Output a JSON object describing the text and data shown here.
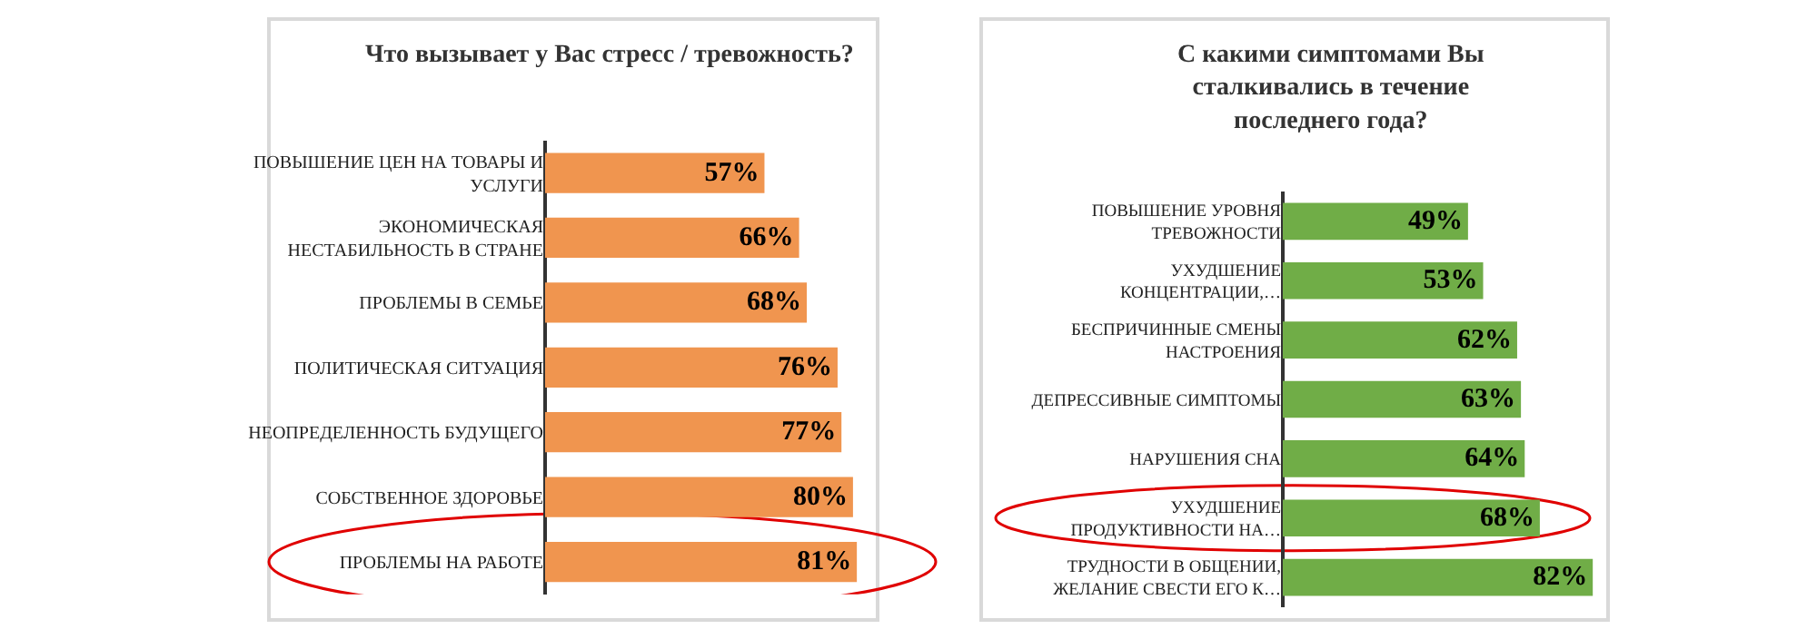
{
  "chart_data": [
    {
      "type": "bar",
      "orientation": "horizontal",
      "title": "Что вызывает у Вас стресс / тревожность?",
      "categories": [
        "ПОВЫШЕНИЕ ЦЕН НА ТОВАРЫ И УСЛУГИ",
        "ЭКОНОМИЧЕСКАЯ НЕСТАБИЛЬНОСТЬ В СТРАНЕ",
        "ПРОБЛЕМЫ В СЕМЬЕ",
        "ПОЛИТИЧЕСКАЯ СИТУАЦИЯ",
        "НЕОПРЕДЕЛЕННОСТЬ БУДУЩЕГО",
        "СОБСТВЕННОЕ ЗДОРОВЬЕ",
        "ПРОБЛЕМЫ НА РАБОТЕ"
      ],
      "series": [
        {
          "color": "#f0954f",
          "values": [
            57,
            66,
            68,
            76,
            77,
            80,
            81
          ],
          "value_labels": [
            "57%",
            "66%",
            "68%",
            "76%",
            "77%",
            "80%",
            "81%"
          ]
        }
      ],
      "tick_labels": "y"
    },
    {
      "type": "bar",
      "orientation": "horizontal",
      "title": "С какими симптомами Вы сталкивались в течение последнего года?",
      "categories": [
        "ПОВЫШЕНИЕ УРОВНЯ ТРЕВОЖНОСТИ",
        "УХУДШЕНИЕ КОНЦЕНТРАЦИИ,…",
        "БЕСПРИЧИННЫЕ СМЕНЫ НАСТРОЕНИЯ",
        "ДЕПРЕССИВНЫЕ СИМПТОМЫ",
        "НАРУШЕНИЯ СНА",
        "УХУДШЕНИЕ ПРОДУКТИВНОСТИ НА…",
        "ТРУДНОСТИ В ОБЩЕНИИ, ЖЕЛАНИЕ СВЕСТИ ЕГО К…"
      ],
      "series": [
        {
          "color": "#70ad47",
          "values": [
            49,
            53,
            62,
            63,
            64,
            68,
            82
          ],
          "value_labels": [
            "49%",
            "53%",
            "62%",
            "63%",
            "64%",
            "68%",
            "82%"
          ]
        }
      ],
      "tick_labels": "y"
    }
  ]
}
